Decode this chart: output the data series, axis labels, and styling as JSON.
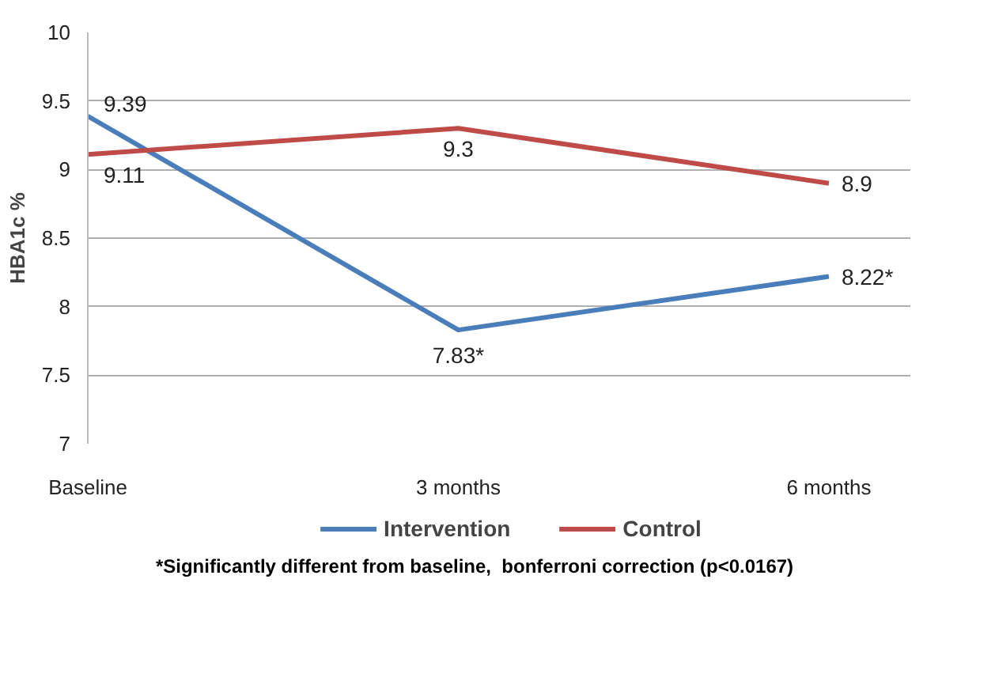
{
  "chart_data": {
    "type": "line",
    "ylabel": "HBA1c %",
    "categories": [
      "Baseline",
      "3 months",
      "6 months"
    ],
    "series": [
      {
        "name": "Intervention",
        "color": "#4a7ebb",
        "values": [
          9.39,
          7.83,
          8.22
        ],
        "value_labels": [
          "9.39",
          "7.83*",
          "8.22*"
        ]
      },
      {
        "name": "Control",
        "color": "#be4b48",
        "values": [
          9.11,
          9.3,
          8.9
        ],
        "value_labels": [
          "9.11",
          "9.3",
          "8.9"
        ]
      }
    ],
    "ylim": [
      7,
      10
    ],
    "yticks": [
      7,
      7.5,
      8,
      8.5,
      9,
      9.5,
      10
    ],
    "grid": "y",
    "legend": "bottom",
    "marker": "none",
    "line_style": "solid",
    "annotations": [
      "*Significantly different from baseline,  bonferroni correction (p<0.0167)"
    ]
  }
}
